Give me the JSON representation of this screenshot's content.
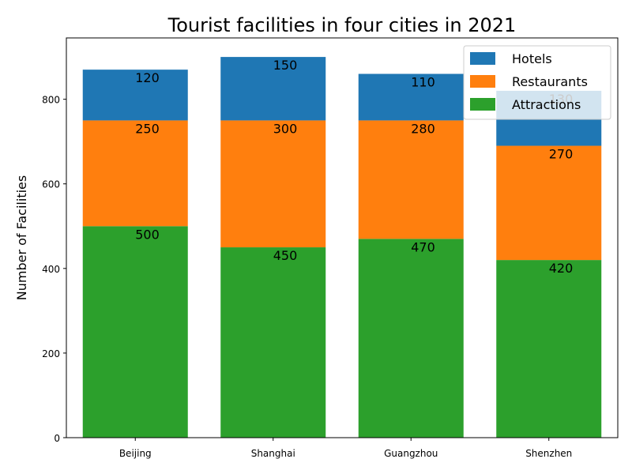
{
  "chart_data": {
    "type": "bar",
    "stacked": true,
    "title": "Tourist facilities in four cities in 2021",
    "xlabel": "",
    "ylabel": "Number of Facilities",
    "categories": [
      "Beijing",
      "Shanghai",
      "Guangzhou",
      "Shenzhen"
    ],
    "series": [
      {
        "name": "Attractions",
        "values": [
          500,
          450,
          470,
          420
        ],
        "color": "#2ca02c"
      },
      {
        "name": "Restaurants",
        "values": [
          250,
          300,
          280,
          270
        ],
        "color": "#ff7f0e"
      },
      {
        "name": "Hotels",
        "values": [
          120,
          150,
          110,
          130
        ],
        "color": "#1f77b4"
      }
    ],
    "legend_order": [
      "Hotels",
      "Restaurants",
      "Attractions"
    ],
    "ylim": [
      0,
      945
    ],
    "yticks": [
      0,
      200,
      400,
      600,
      800
    ],
    "legend_position": "upper right",
    "grid": false
  }
}
